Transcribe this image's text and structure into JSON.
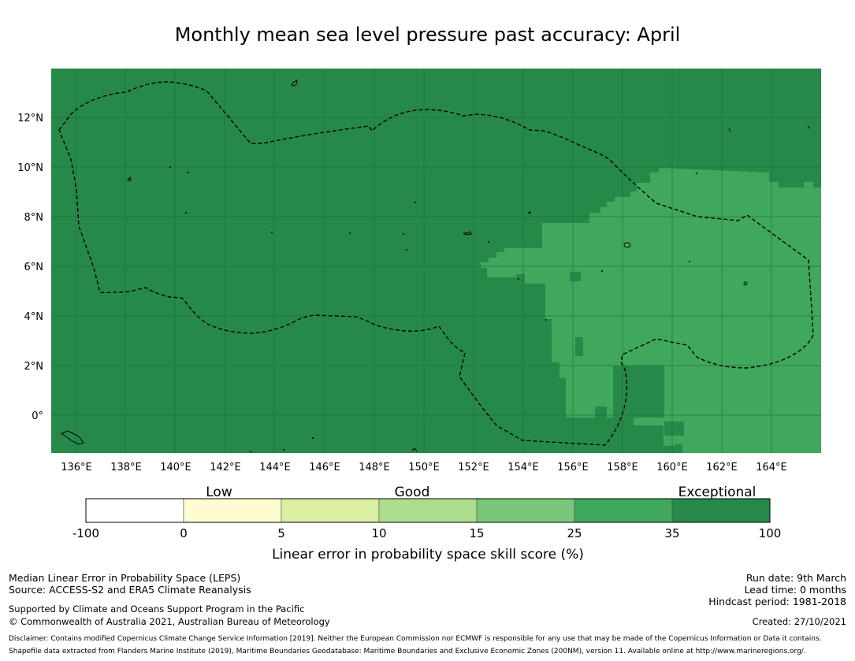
{
  "title": "Monthly mean sea level pressure past accuracy: April",
  "map": {
    "lon_range": [
      135,
      166
    ],
    "lat_range": [
      -1.5,
      14
    ],
    "lon_ticks": [
      "136°E",
      "138°E",
      "140°E",
      "142°E",
      "144°E",
      "146°E",
      "148°E",
      "150°E",
      "152°E",
      "154°E",
      "156°E",
      "158°E",
      "160°E",
      "162°E",
      "164°E"
    ],
    "lat_ticks": [
      "0°",
      "2°N",
      "4°N",
      "6°N",
      "8°N",
      "10°N",
      "12°N"
    ],
    "colors": {
      "exceptional_dark": "#26894a",
      "good_light": "#3fa85c"
    },
    "region_legend": "Dashed line: maritime boundary (EEZ)"
  },
  "colorbar": {
    "category_labels": [
      "Low",
      "Good",
      "Exceptional"
    ],
    "tick_labels": [
      "-100",
      "0",
      "5",
      "10",
      "15",
      "25",
      "35",
      "100"
    ],
    "colors": [
      "#ffffff",
      "#fefdcf",
      "#daefa2",
      "#aedd8e",
      "#79c77a",
      "#3fa85c",
      "#26894a"
    ],
    "label": "Linear error in probability space skill score (%)"
  },
  "footer": {
    "line1": "Median Linear Error in Probability Space (LEPS)",
    "line2": "Source: ACCESS-S2 and ERA5 Climate Reanalysis",
    "line3": "Supported by Climate and Oceans Support Program in the Pacific",
    "line4": "© Commonwealth of Australia 2021, Australian Bureau of Meteorology",
    "run_date": "Run date: 9th March",
    "lead_time": "Lead time: 0 months",
    "hindcast": "Hindcast period: 1981-2018",
    "created": "Created: 27/10/2021",
    "disclaimer": "Disclaimer: Contains modified Copernicus Climate Change Service Information [2019]. Neither the European Commission nor ECMWF is responsible for any use that may be made of the Copernicus Information or Data it contains.",
    "shapefile": "Shapefile data extracted from Flanders Marine Institute (2019), Maritime Boundaries Geodatabase: Maritime Boundaries and Exclusive Economic Zones (200NM), version 11. Available online at http://www.marineregions.org/."
  }
}
